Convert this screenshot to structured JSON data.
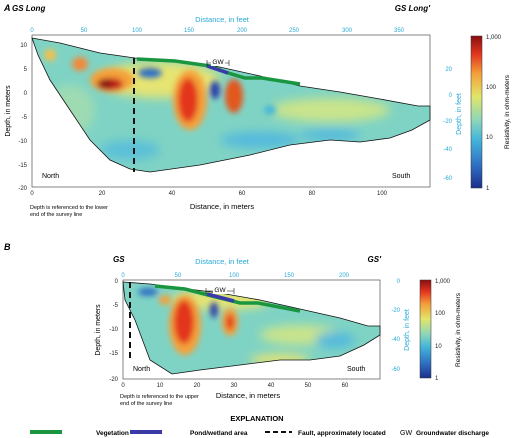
{
  "panel_a": {
    "letter": "A",
    "left_label": "GS Long",
    "right_label": "GS Long′",
    "top_axis_title": "Distance, in feet",
    "top_ticks": [
      "0",
      "50",
      "100",
      "150",
      "200",
      "250",
      "300",
      "350"
    ],
    "left_axis_title": "Depth, in meters",
    "left_ticks": [
      "10",
      "5",
      "0",
      "-5",
      "-10",
      "-15",
      "-20"
    ],
    "right_axis_title": "Depth, in feet",
    "right_ticks": [
      "20",
      "0",
      "-20",
      "-40",
      "-60"
    ],
    "bottom_axis_title": "Distance, in meters",
    "bottom_ticks": [
      "0",
      "20",
      "40",
      "60",
      "80",
      "100"
    ],
    "north_label": "North",
    "south_label": "South",
    "gw_label": "GW",
    "note_line1": "Depth is referenced to the lower",
    "note_line2": "end of the survey line",
    "colorbar_title": "Resistivity, in ohm-meters",
    "colorbar_ticks": [
      "1,000",
      "100",
      "10",
      "1"
    ]
  },
  "panel_b": {
    "letter": "B",
    "left_label": "GS",
    "right_label": "GS′",
    "top_axis_title": "Distance, in feet",
    "top_ticks": [
      "0",
      "50",
      "100",
      "150",
      "200"
    ],
    "left_axis_title": "Depth, in meters",
    "left_ticks": [
      "0",
      "-5",
      "-10",
      "-15",
      "-20"
    ],
    "right_axis_title": "Depth, in feet",
    "right_ticks": [
      "0",
      "-20",
      "-40",
      "-60"
    ],
    "bottom_axis_title": "Distance, in meters",
    "bottom_ticks": [
      "0",
      "10",
      "20",
      "30",
      "40",
      "50",
      "60"
    ],
    "north_label": "North",
    "south_label": "South",
    "gw_label": "GW",
    "note_line1": "Depth is referenced to the upper",
    "note_line2": "end of the survey line",
    "colorbar_title": "Resistivity, in ohm-meters",
    "colorbar_ticks": [
      "1,000",
      "100",
      "10",
      "1"
    ]
  },
  "explanation": {
    "title": "EXPLANATION",
    "vegetation": "Vegetation",
    "pond": "Pond/wetland area",
    "fault": "Fault, approximately located",
    "gw_abbrev": "GW",
    "gw_desc": "Groundwater discharge"
  },
  "colors": {
    "vegetation": "#1a9641",
    "pond": "#3a3aa8",
    "feet_axis": "#29a9d6",
    "background_field": "#7fd3c4"
  }
}
